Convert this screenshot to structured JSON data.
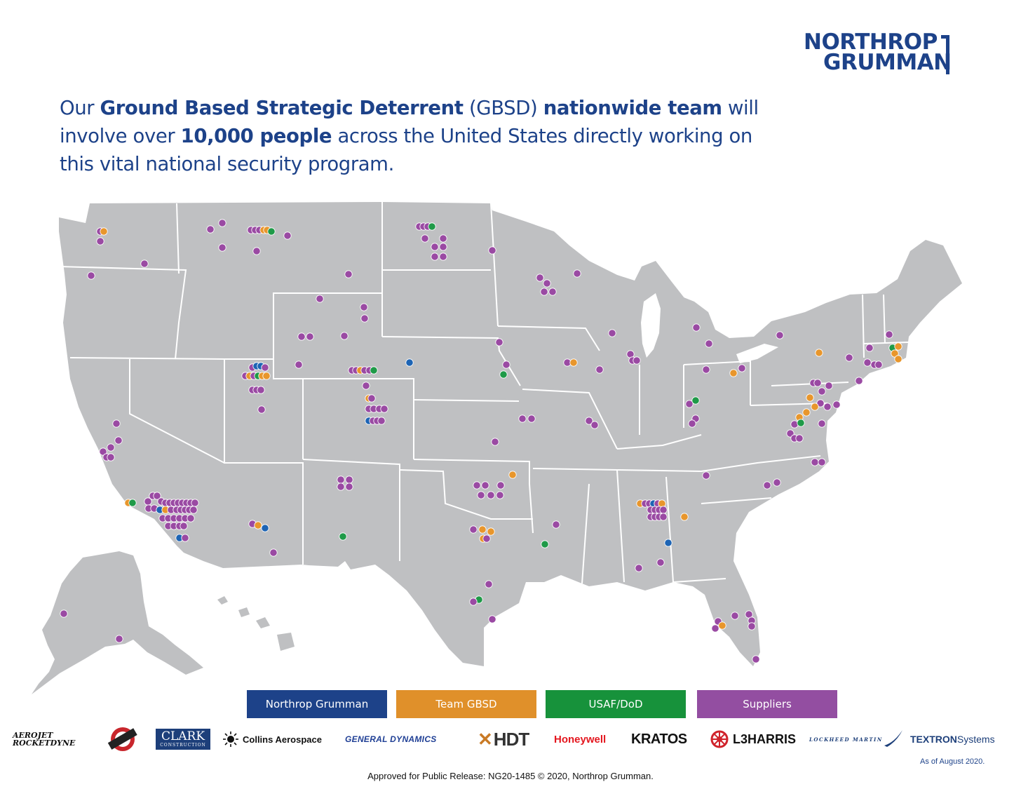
{
  "header": {
    "logo_line1": "NORTHROP",
    "logo_line2": "GRUMMAN",
    "headline": {
      "t1": "Our ",
      "b1": "Ground Based Strategic Deterrent",
      "t2": " (GBSD) ",
      "b2": "nationwide team",
      "t3": " will involve over ",
      "b3": "10,000 people",
      "t4": " across the United States directly working on this vital national security program."
    }
  },
  "map": {
    "land_color": "#bfc0c2",
    "border_color": "#ffffff",
    "site_colors": {
      "northrop_grumman": "#1d64b4",
      "team_gbsd": "#e8962c",
      "usaf_dod": "#1f9a48",
      "suppliers": "#9a4aa3"
    }
  },
  "legend": {
    "northrop_grumman": "Northrop Grumman",
    "team_gbsd": "Team GBSD",
    "usaf_dod": "USAF/DoD",
    "suppliers": "Suppliers"
  },
  "partners": {
    "aerojet_1": "AEROJET",
    "aerojet_2": "ROCKETDYNE",
    "clark": "CLARK",
    "clark_sub": "CONSTRUCTION",
    "collins": "Collins Aerospace",
    "general_dynamics": "GENERAL DYNAMICS",
    "hdt": "HDT",
    "honeywell": "Honeywell",
    "kratos": "KRATOS",
    "l3harris": "L3HARRIS",
    "lockheed": "LOCKHEED MARTIN",
    "textron_bold": "TEXTRON",
    "textron_rest": " Systems",
    "icons": [
      "aerojet-rocketdyne-logo",
      "round-badge-logo",
      "collins-sun-icon",
      "l3harris-gear-icon",
      "lockheed-star-icon"
    ]
  },
  "as_of": "As of August 2020.",
  "footer": "Approved for Public Release: NG20-1485 © 2020, Northrop Grumman."
}
